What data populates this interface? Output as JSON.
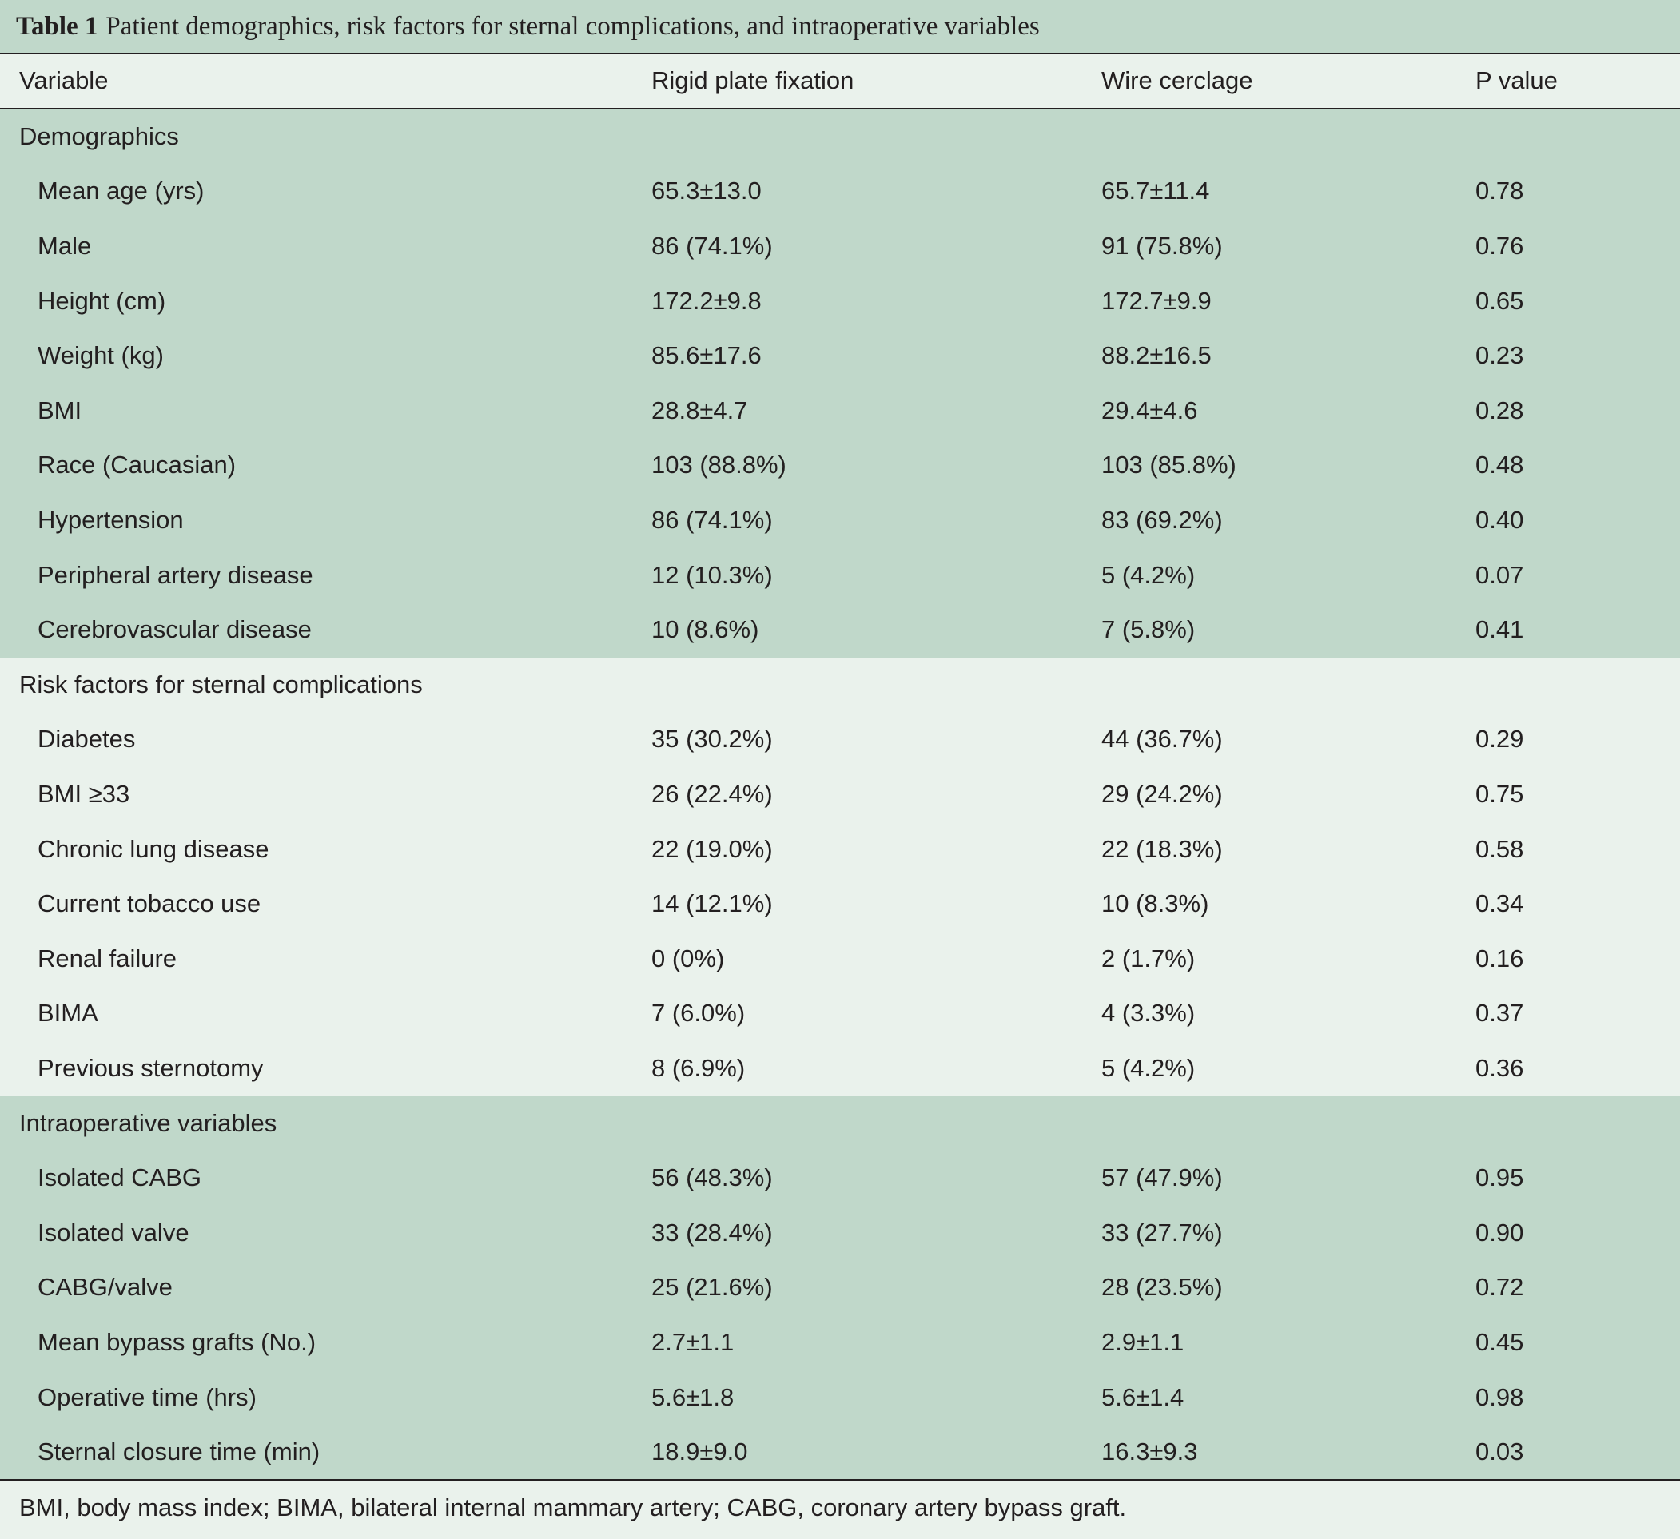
{
  "caption": {
    "label": "Table 1",
    "text": "Patient demographics, risk factors for sternal complications, and intraoperative variables"
  },
  "columns": [
    "Variable",
    "Rigid plate fixation",
    "Wire cerclage",
    "P value"
  ],
  "sections": [
    {
      "title": "Demographics",
      "rows": [
        [
          "Mean age (yrs)",
          "65.3±13.0",
          "65.7±11.4",
          "0.78"
        ],
        [
          "Male",
          "86 (74.1%)",
          "91 (75.8%)",
          "0.76"
        ],
        [
          "Height (cm)",
          "172.2±9.8",
          "172.7±9.9",
          "0.65"
        ],
        [
          "Weight (kg)",
          "85.6±17.6",
          "88.2±16.5",
          "0.23"
        ],
        [
          "BMI",
          "28.8±4.7",
          "29.4±4.6",
          "0.28"
        ],
        [
          "Race (Caucasian)",
          "103 (88.8%)",
          "103 (85.8%)",
          "0.48"
        ],
        [
          "Hypertension",
          "86 (74.1%)",
          "83 (69.2%)",
          "0.40"
        ],
        [
          "Peripheral artery disease",
          "12 (10.3%)",
          "5 (4.2%)",
          "0.07"
        ],
        [
          "Cerebrovascular disease",
          "10 (8.6%)",
          "7 (5.8%)",
          "0.41"
        ]
      ]
    },
    {
      "title": "Risk factors for sternal complications",
      "rows": [
        [
          "Diabetes",
          "35 (30.2%)",
          "44 (36.7%)",
          "0.29"
        ],
        [
          "BMI ≥33",
          "26 (22.4%)",
          "29 (24.2%)",
          "0.75"
        ],
        [
          "Chronic lung disease",
          "22 (19.0%)",
          "22 (18.3%)",
          "0.58"
        ],
        [
          "Current tobacco use",
          "14 (12.1%)",
          "10 (8.3%)",
          "0.34"
        ],
        [
          "Renal failure",
          "0 (0%)",
          "2 (1.7%)",
          "0.16"
        ],
        [
          "BIMA",
          "7 (6.0%)",
          "4 (3.3%)",
          "0.37"
        ],
        [
          "Previous sternotomy",
          "8 (6.9%)",
          "5 (4.2%)",
          "0.36"
        ]
      ]
    },
    {
      "title": "Intraoperative variables",
      "rows": [
        [
          "Isolated CABG",
          "56 (48.3%)",
          "57 (47.9%)",
          "0.95"
        ],
        [
          "Isolated valve",
          "33 (28.4%)",
          "33 (27.7%)",
          "0.90"
        ],
        [
          "CABG/valve",
          "25 (21.6%)",
          "28 (23.5%)",
          "0.72"
        ],
        [
          "Mean bypass grafts (No.)",
          "2.7±1.1",
          "2.9±1.1",
          "0.45"
        ],
        [
          "Operative time (hrs)",
          "5.6±1.8",
          "5.6±1.4",
          "0.98"
        ],
        [
          "Sternal closure time (min)",
          "18.9±9.0",
          "16.3±9.3",
          "0.03"
        ]
      ]
    }
  ],
  "footnote": "BMI, body mass index; BIMA, bilateral internal mammary artery; CABG, coronary artery bypass graft.",
  "colors": {
    "band_green": "#c0d8ca",
    "band_light": "#eaf2ec",
    "rule": "#231f20"
  }
}
